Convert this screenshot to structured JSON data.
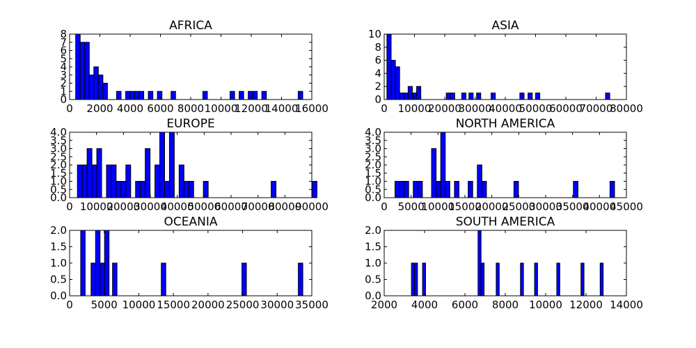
{
  "figure": {
    "background": "#ffffff"
  },
  "style": {
    "bar_fill": "#0000ff",
    "bar_edge": "#000000",
    "axis_color": "#000000"
  },
  "chart_data": [
    {
      "type": "bar",
      "title": "AFRICA",
      "xlim": [
        0,
        16000
      ],
      "ylim": [
        0,
        8
      ],
      "xticks": [
        0,
        2000,
        4000,
        6000,
        8000,
        10000,
        12000,
        14000,
        16000
      ],
      "yticks": [
        0,
        1,
        2,
        3,
        4,
        5,
        6,
        7,
        8
      ],
      "bin_width": 300,
      "bins": [
        [
          400,
          8
        ],
        [
          700,
          7
        ],
        [
          1000,
          7
        ],
        [
          1300,
          3
        ],
        [
          1600,
          4
        ],
        [
          1900,
          3
        ],
        [
          2200,
          2
        ],
        [
          3100,
          1
        ],
        [
          3700,
          1
        ],
        [
          4000,
          1
        ],
        [
          4300,
          1
        ],
        [
          4600,
          1
        ],
        [
          5200,
          1
        ],
        [
          5800,
          1
        ],
        [
          6700,
          1
        ],
        [
          8800,
          1
        ],
        [
          10600,
          1
        ],
        [
          11200,
          1
        ],
        [
          11800,
          1
        ],
        [
          12100,
          1
        ],
        [
          12700,
          1
        ],
        [
          15100,
          1
        ]
      ]
    },
    {
      "type": "bar",
      "title": "ASIA",
      "xlim": [
        0,
        80000
      ],
      "ylim": [
        0,
        10
      ],
      "xticks": [
        0,
        10000,
        20000,
        30000,
        40000,
        50000,
        60000,
        70000,
        80000
      ],
      "yticks": [
        0,
        2,
        4,
        6,
        8,
        10
      ],
      "bin_width": 1400,
      "bins": [
        [
          900,
          10
        ],
        [
          2300,
          6
        ],
        [
          3700,
          5
        ],
        [
          5100,
          1
        ],
        [
          6500,
          1
        ],
        [
          7900,
          2
        ],
        [
          9300,
          1
        ],
        [
          10700,
          2
        ],
        [
          20500,
          1
        ],
        [
          21900,
          1
        ],
        [
          25600,
          1
        ],
        [
          28000,
          1
        ],
        [
          30500,
          1
        ],
        [
          35300,
          1
        ],
        [
          44800,
          1
        ],
        [
          47500,
          1
        ],
        [
          50000,
          1
        ],
        [
          73100,
          1
        ]
      ]
    },
    {
      "type": "bar",
      "title": "EUROPE",
      "xlim": [
        0,
        90000
      ],
      "ylim": [
        0,
        4
      ],
      "xticks": [
        0,
        10000,
        20000,
        30000,
        40000,
        50000,
        60000,
        70000,
        80000,
        90000
      ],
      "yticks": [
        0.0,
        0.5,
        1.0,
        1.5,
        2.0,
        2.5,
        3.0,
        3.5,
        4.0
      ],
      "bin_width": 1800,
      "bins": [
        [
          2900,
          2
        ],
        [
          4700,
          2
        ],
        [
          6500,
          3
        ],
        [
          8300,
          2
        ],
        [
          10100,
          3
        ],
        [
          13700,
          2
        ],
        [
          15500,
          2
        ],
        [
          17300,
          1
        ],
        [
          19100,
          1
        ],
        [
          20900,
          2
        ],
        [
          24500,
          1
        ],
        [
          26300,
          1
        ],
        [
          28100,
          3
        ],
        [
          31700,
          2
        ],
        [
          33500,
          4
        ],
        [
          35300,
          1
        ],
        [
          37100,
          4
        ],
        [
          40700,
          2
        ],
        [
          42500,
          1
        ],
        [
          44300,
          1
        ],
        [
          49700,
          1
        ],
        [
          74900,
          1
        ],
        [
          90100,
          1
        ]
      ]
    },
    {
      "type": "bar",
      "title": "NORTH AMERICA",
      "xlim": [
        0,
        45000
      ],
      "ylim": [
        0,
        4
      ],
      "xticks": [
        0,
        5000,
        10000,
        15000,
        20000,
        25000,
        30000,
        35000,
        40000,
        45000
      ],
      "yticks": [
        0.0,
        0.5,
        1.0,
        1.5,
        2.0,
        2.5,
        3.0,
        3.5,
        4.0
      ],
      "bin_width": 850,
      "bins": [
        [
          2000,
          1
        ],
        [
          2850,
          1
        ],
        [
          3700,
          1
        ],
        [
          5400,
          1
        ],
        [
          6250,
          1
        ],
        [
          8800,
          3
        ],
        [
          9650,
          1
        ],
        [
          10500,
          4
        ],
        [
          11350,
          1
        ],
        [
          13050,
          1
        ],
        [
          15600,
          1
        ],
        [
          17300,
          2
        ],
        [
          18150,
          1
        ],
        [
          24100,
          1
        ],
        [
          35150,
          1
        ],
        [
          41950,
          1
        ]
      ]
    },
    {
      "type": "bar",
      "title": "OCEANIA",
      "xlim": [
        0,
        35000
      ],
      "ylim": [
        0,
        2
      ],
      "xticks": [
        0,
        5000,
        10000,
        15000,
        20000,
        25000,
        30000,
        35000
      ],
      "yticks": [
        0.0,
        0.5,
        1.0,
        1.5,
        2.0
      ],
      "bin_width": 650,
      "bins": [
        [
          1600,
          2
        ],
        [
          3100,
          1
        ],
        [
          3750,
          2
        ],
        [
          4400,
          1
        ],
        [
          5050,
          2
        ],
        [
          6200,
          1
        ],
        [
          13250,
          1
        ],
        [
          24900,
          1
        ],
        [
          33050,
          1
        ]
      ]
    },
    {
      "type": "bar",
      "title": "SOUTH AMERICA",
      "xlim": [
        2000,
        14000
      ],
      "ylim": [
        0,
        2
      ],
      "xticks": [
        2000,
        4000,
        6000,
        8000,
        10000,
        12000,
        14000
      ],
      "yticks": [
        0.0,
        0.5,
        1.0,
        1.5,
        2.0
      ],
      "bin_width": 150,
      "bins": [
        [
          3350,
          1
        ],
        [
          3500,
          1
        ],
        [
          3900,
          1
        ],
        [
          6650,
          2
        ],
        [
          6800,
          1
        ],
        [
          7550,
          1
        ],
        [
          8750,
          1
        ],
        [
          9450,
          1
        ],
        [
          10550,
          1
        ],
        [
          11750,
          1
        ],
        [
          12700,
          1
        ]
      ]
    }
  ]
}
